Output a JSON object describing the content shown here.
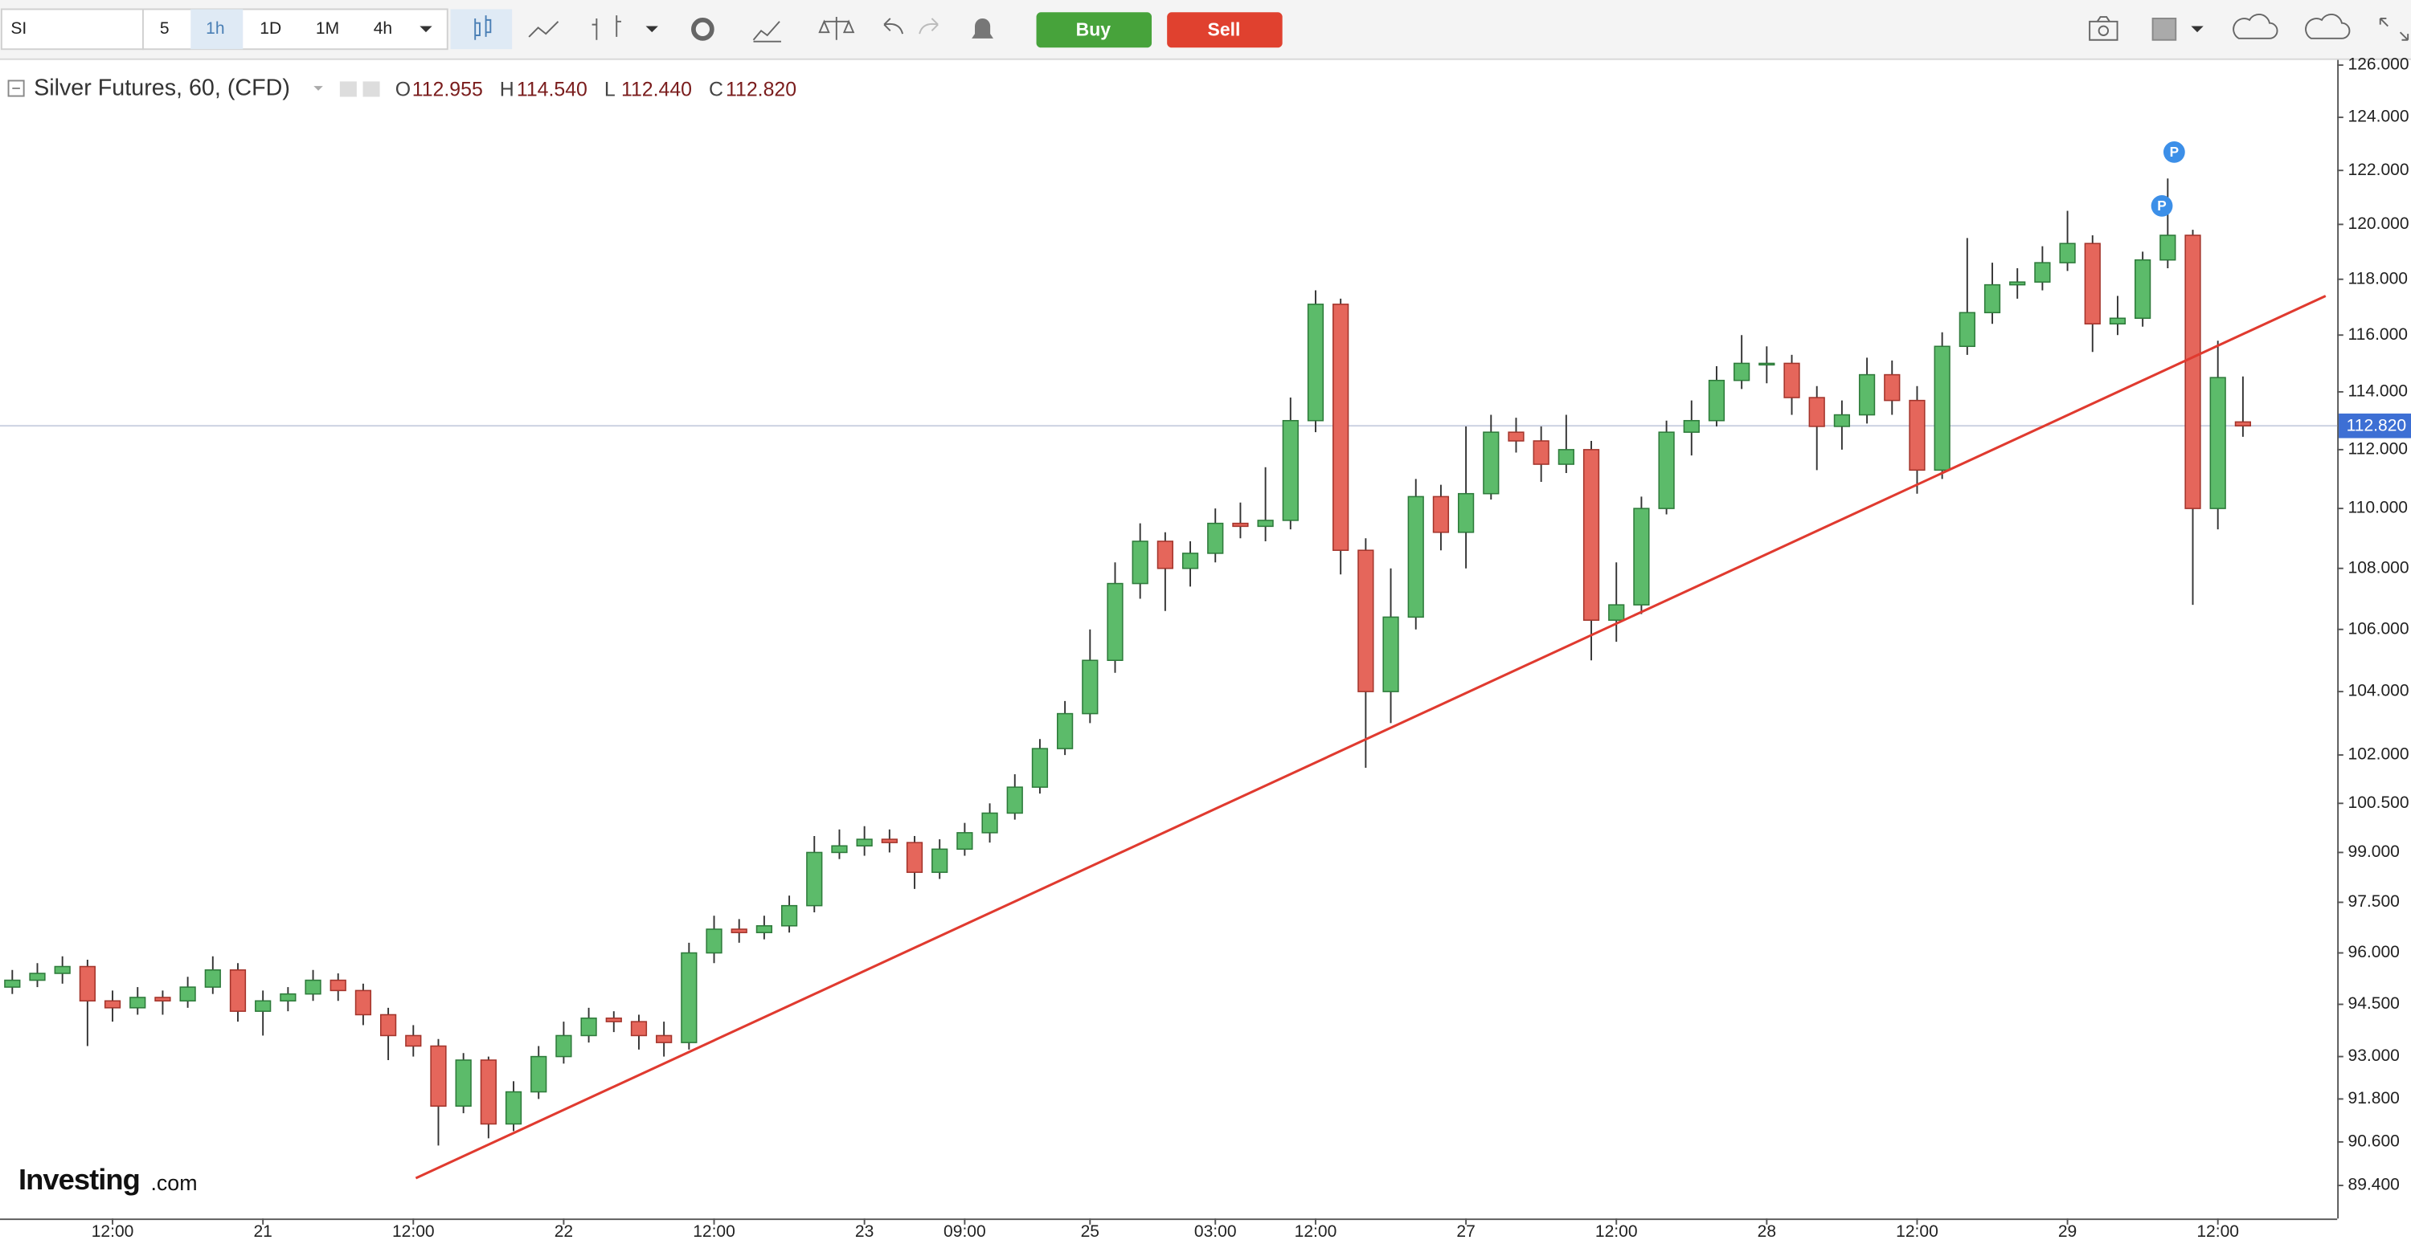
{
  "toolbar": {
    "symbol": "SI",
    "intervals": [
      "5",
      "1h",
      "1D",
      "1M",
      "4h"
    ],
    "buy": "Buy",
    "sell": "Sell"
  },
  "logo": {
    "name": "Investing",
    "suffix": ".com"
  },
  "chart_data": {
    "type": "candlestick",
    "title": "Silver Futures, 60, (CFD)",
    "legend": [
      {
        "label": "O",
        "value": "112.955"
      },
      {
        "label": "H",
        "value": "114.540"
      },
      {
        "label": "L",
        "value": "112.440"
      },
      {
        "label": "C",
        "value": "112.820"
      }
    ],
    "categories": [
      null,
      null,
      null,
      null,
      "12:00",
      null,
      null,
      null,
      null,
      null,
      "21",
      null,
      null,
      null,
      null,
      null,
      "12:00",
      null,
      null,
      null,
      null,
      null,
      "22",
      null,
      null,
      null,
      null,
      null,
      "12:00",
      null,
      null,
      null,
      null,
      null,
      "23",
      null,
      null,
      null,
      "09:00",
      null,
      null,
      null,
      null,
      "25",
      null,
      null,
      null,
      null,
      "03:00",
      null,
      null,
      null,
      "12:00",
      null,
      null,
      null,
      null,
      null,
      "27",
      null,
      null,
      null,
      null,
      null,
      "12:00",
      null,
      null,
      null,
      null,
      null,
      "28",
      null,
      null,
      null,
      null,
      null,
      "12:00",
      null,
      null,
      null,
      null,
      null,
      "29",
      null,
      null,
      null,
      null,
      null,
      "12:00",
      null
    ],
    "open": [
      95.0,
      95.2,
      95.4,
      95.6,
      94.6,
      94.4,
      94.7,
      94.6,
      95.0,
      95.5,
      94.3,
      94.6,
      94.8,
      95.2,
      94.9,
      94.2,
      93.6,
      93.3,
      91.6,
      92.9,
      91.1,
      92.0,
      93.0,
      93.6,
      94.1,
      94.0,
      93.6,
      93.4,
      96.0,
      96.7,
      96.6,
      96.8,
      97.4,
      99.0,
      99.2,
      99.4,
      99.3,
      98.4,
      99.1,
      99.6,
      100.2,
      101.0,
      102.2,
      103.3,
      105.0,
      107.5,
      108.9,
      108.0,
      108.5,
      109.5,
      109.4,
      109.6,
      113.0,
      117.1,
      108.6,
      104.0,
      106.4,
      110.4,
      109.2,
      110.5,
      112.6,
      112.3,
      111.5,
      112.0,
      106.3,
      106.8,
      110.0,
      112.6,
      113.0,
      114.4,
      115.0,
      115.0,
      113.8,
      112.8,
      113.2,
      114.6,
      113.7,
      111.3,
      115.6,
      116.8,
      117.8,
      117.9,
      118.6,
      119.3,
      116.4,
      116.6,
      118.7,
      119.6,
      110.0,
      112.955
    ],
    "high": [
      95.5,
      95.7,
      95.9,
      95.8,
      94.9,
      95.0,
      94.9,
      95.3,
      95.9,
      95.7,
      94.9,
      95.0,
      95.5,
      95.4,
      95.1,
      94.4,
      93.9,
      93.5,
      93.1,
      93.0,
      92.3,
      93.3,
      94.0,
      94.4,
      94.3,
      94.2,
      94.0,
      96.3,
      97.1,
      97.0,
      97.1,
      97.7,
      99.5,
      99.7,
      99.8,
      99.7,
      99.5,
      99.4,
      99.9,
      100.5,
      101.4,
      102.5,
      103.7,
      106.0,
      108.2,
      109.5,
      109.2,
      108.9,
      110.0,
      110.2,
      111.4,
      113.8,
      117.6,
      117.3,
      109.0,
      108.0,
      111.0,
      110.8,
      112.8,
      113.2,
      113.1,
      112.8,
      113.2,
      112.3,
      108.2,
      110.4,
      113.0,
      113.7,
      114.9,
      116.0,
      115.6,
      115.3,
      114.2,
      113.7,
      115.2,
      115.1,
      114.2,
      116.1,
      119.5,
      118.6,
      118.4,
      119.2,
      120.5,
      119.6,
      117.4,
      119.0,
      121.7,
      119.8,
      115.8,
      114.54
    ],
    "low": [
      94.8,
      95.0,
      95.1,
      93.3,
      94.0,
      94.2,
      94.2,
      94.4,
      94.8,
      94.0,
      93.6,
      94.3,
      94.6,
      94.6,
      93.9,
      92.9,
      93.0,
      90.5,
      91.4,
      90.7,
      90.9,
      91.8,
      92.8,
      93.4,
      93.7,
      93.2,
      93.0,
      93.2,
      95.7,
      96.3,
      96.4,
      96.6,
      97.2,
      98.8,
      98.9,
      99.0,
      97.9,
      98.2,
      98.9,
      99.3,
      100.0,
      100.8,
      102.0,
      103.0,
      104.6,
      107.0,
      106.6,
      107.4,
      108.2,
      109.0,
      108.9,
      109.3,
      112.6,
      107.8,
      101.6,
      103.0,
      106.0,
      108.6,
      108.0,
      110.3,
      111.9,
      110.9,
      111.2,
      105.0,
      105.6,
      106.5,
      109.8,
      111.8,
      112.8,
      114.1,
      114.3,
      113.2,
      111.3,
      112.0,
      112.9,
      113.2,
      110.5,
      111.0,
      115.3,
      116.4,
      117.3,
      117.6,
      118.3,
      115.4,
      116.0,
      116.3,
      118.4,
      106.8,
      109.3,
      112.44
    ],
    "close": [
      95.2,
      95.4,
      95.6,
      94.6,
      94.4,
      94.7,
      94.6,
      95.0,
      95.5,
      94.3,
      94.6,
      94.8,
      95.2,
      94.9,
      94.2,
      93.6,
      93.3,
      91.6,
      92.9,
      91.1,
      92.0,
      93.0,
      93.6,
      94.1,
      94.0,
      93.6,
      93.4,
      96.0,
      96.7,
      96.6,
      96.8,
      97.4,
      99.0,
      99.2,
      99.4,
      99.3,
      98.4,
      99.1,
      99.6,
      100.2,
      101.0,
      102.2,
      103.3,
      105.0,
      107.5,
      108.9,
      108.0,
      108.5,
      109.5,
      109.4,
      109.6,
      113.0,
      117.1,
      108.6,
      104.0,
      106.4,
      110.4,
      109.2,
      110.5,
      112.6,
      112.3,
      111.5,
      112.0,
      106.3,
      106.8,
      110.0,
      112.6,
      113.0,
      114.4,
      115.0,
      115.0,
      113.8,
      112.8,
      113.2,
      114.6,
      113.7,
      111.3,
      115.6,
      116.8,
      117.8,
      117.9,
      118.6,
      119.3,
      116.4,
      116.6,
      118.7,
      119.6,
      110.0,
      114.5,
      112.82
    ],
    "up_color": "#5cbb6a",
    "down_color": "#e5665b",
    "log_scale": true,
    "grid": false,
    "ylim": [
      88.5,
      126.2
    ],
    "yticks": [
      {
        "value": 126,
        "label": "126.000"
      },
      {
        "value": 124,
        "label": "124.000"
      },
      {
        "value": 122,
        "label": "122.000"
      },
      {
        "value": 120,
        "label": "120.000"
      },
      {
        "value": 118,
        "label": "118.000"
      },
      {
        "value": 116,
        "label": "116.000"
      },
      {
        "value": 114,
        "label": "114.000"
      },
      {
        "value": 112,
        "label": "112.000"
      },
      {
        "value": 110,
        "label": "110.000"
      },
      {
        "value": 108,
        "label": "108.000"
      },
      {
        "value": 106,
        "label": "106.000"
      },
      {
        "value": 104,
        "label": "104.000"
      },
      {
        "value": 102,
        "label": "102.000"
      },
      {
        "value": 100.5,
        "label": "100.500"
      },
      {
        "value": 99,
        "label": "99.000"
      },
      {
        "value": 97.5,
        "label": "97.500"
      },
      {
        "value": 96,
        "label": "96.000"
      },
      {
        "value": 94.5,
        "label": "94.500"
      },
      {
        "value": 93,
        "label": "93.000"
      },
      {
        "value": 91.8,
        "label": "91.800"
      },
      {
        "value": 90.6,
        "label": "90.600"
      },
      {
        "value": 89.4,
        "label": "89.400"
      }
    ],
    "last_price": {
      "value": 112.82,
      "label": "112.820",
      "color": "#3d6fd4"
    },
    "trendline": {
      "color": "#e03a2f",
      "x": [
        16.1,
        92.3
      ],
      "values": [
        89.6,
        117.4
      ]
    },
    "markers": [
      "P",
      "P"
    ]
  }
}
